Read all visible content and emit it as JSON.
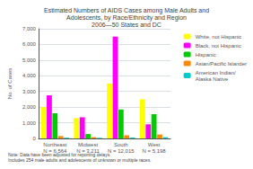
{
  "chart_data": {
    "type": "bar",
    "title": "Estimated Numbers of AIDS Cases among Male Adults and\nAdolescents, by Race/Ethnicity and Region\n2006—50 States and DC",
    "categories": [
      "Northeast\nN = 6,564",
      "Midwest\nN = 3,211",
      "South\nN = 12,015",
      "West\nN = 5,198"
    ],
    "series": [
      {
        "name": "White, not Hispanic",
        "color": "#ffff00",
        "values": [
          2000,
          1300,
          3500,
          2500
        ]
      },
      {
        "name": "Black, not Hispanic",
        "color": "#ff00ff",
        "values": [
          2750,
          1350,
          6500,
          900
        ]
      },
      {
        "name": "Hispanic",
        "color": "#00cc00",
        "values": [
          1600,
          280,
          1850,
          1550
        ]
      },
      {
        "name": "Asian/Pacific Islander",
        "color": "#ff8800",
        "values": [
          150,
          80,
          200,
          250
        ]
      },
      {
        "name": "American Indian/\nAlaska Native",
        "color": "#00cccc",
        "values": [
          50,
          40,
          60,
          80
        ]
      }
    ],
    "ylabel": "No. of Cases",
    "ylim": [
      0,
      7000
    ],
    "yticks": [
      0,
      {
        "value": 1000,
        "label": "1,000"
      },
      {
        "value": 2000,
        "label": "2,000"
      },
      {
        "value": 3000,
        "label": "3,000"
      },
      {
        "value": 4000,
        "label": "4,000"
      },
      {
        "value": 5000,
        "label": "5,000"
      },
      {
        "value": 6000,
        "label": "6,000"
      },
      {
        "value": 7000,
        "label": "7,000"
      }
    ],
    "grid": true,
    "legend": "right",
    "annotations": [
      "Note: Data have been adjusted for reporting delays.\nIncludes 254 male adults and adolescents of unknown or multiple races."
    ]
  }
}
